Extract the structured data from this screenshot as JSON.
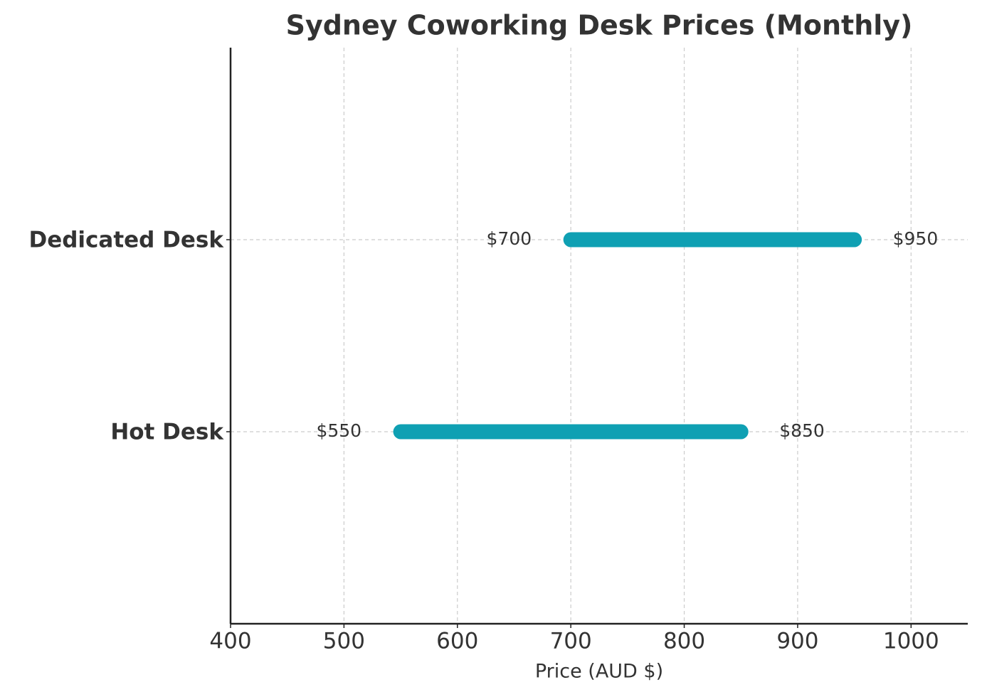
{
  "chart_data": {
    "type": "range",
    "title": "Sydney Coworking Desk Prices (Monthly)",
    "x_label": "Price (AUD $)",
    "categories": [
      "Hot Desk",
      "Dedicated Desk"
    ],
    "low": {
      "values": [
        550,
        700
      ],
      "value_labels": [
        "$550",
        "$700"
      ]
    },
    "high": {
      "values": [
        850,
        950
      ],
      "value_labels": [
        "$850",
        "$950"
      ]
    },
    "color": "#0fa0b3",
    "xlim": [
      400,
      1050
    ],
    "xticks": [
      400,
      500,
      600,
      700,
      800,
      900,
      1000
    ],
    "grid": true
  }
}
